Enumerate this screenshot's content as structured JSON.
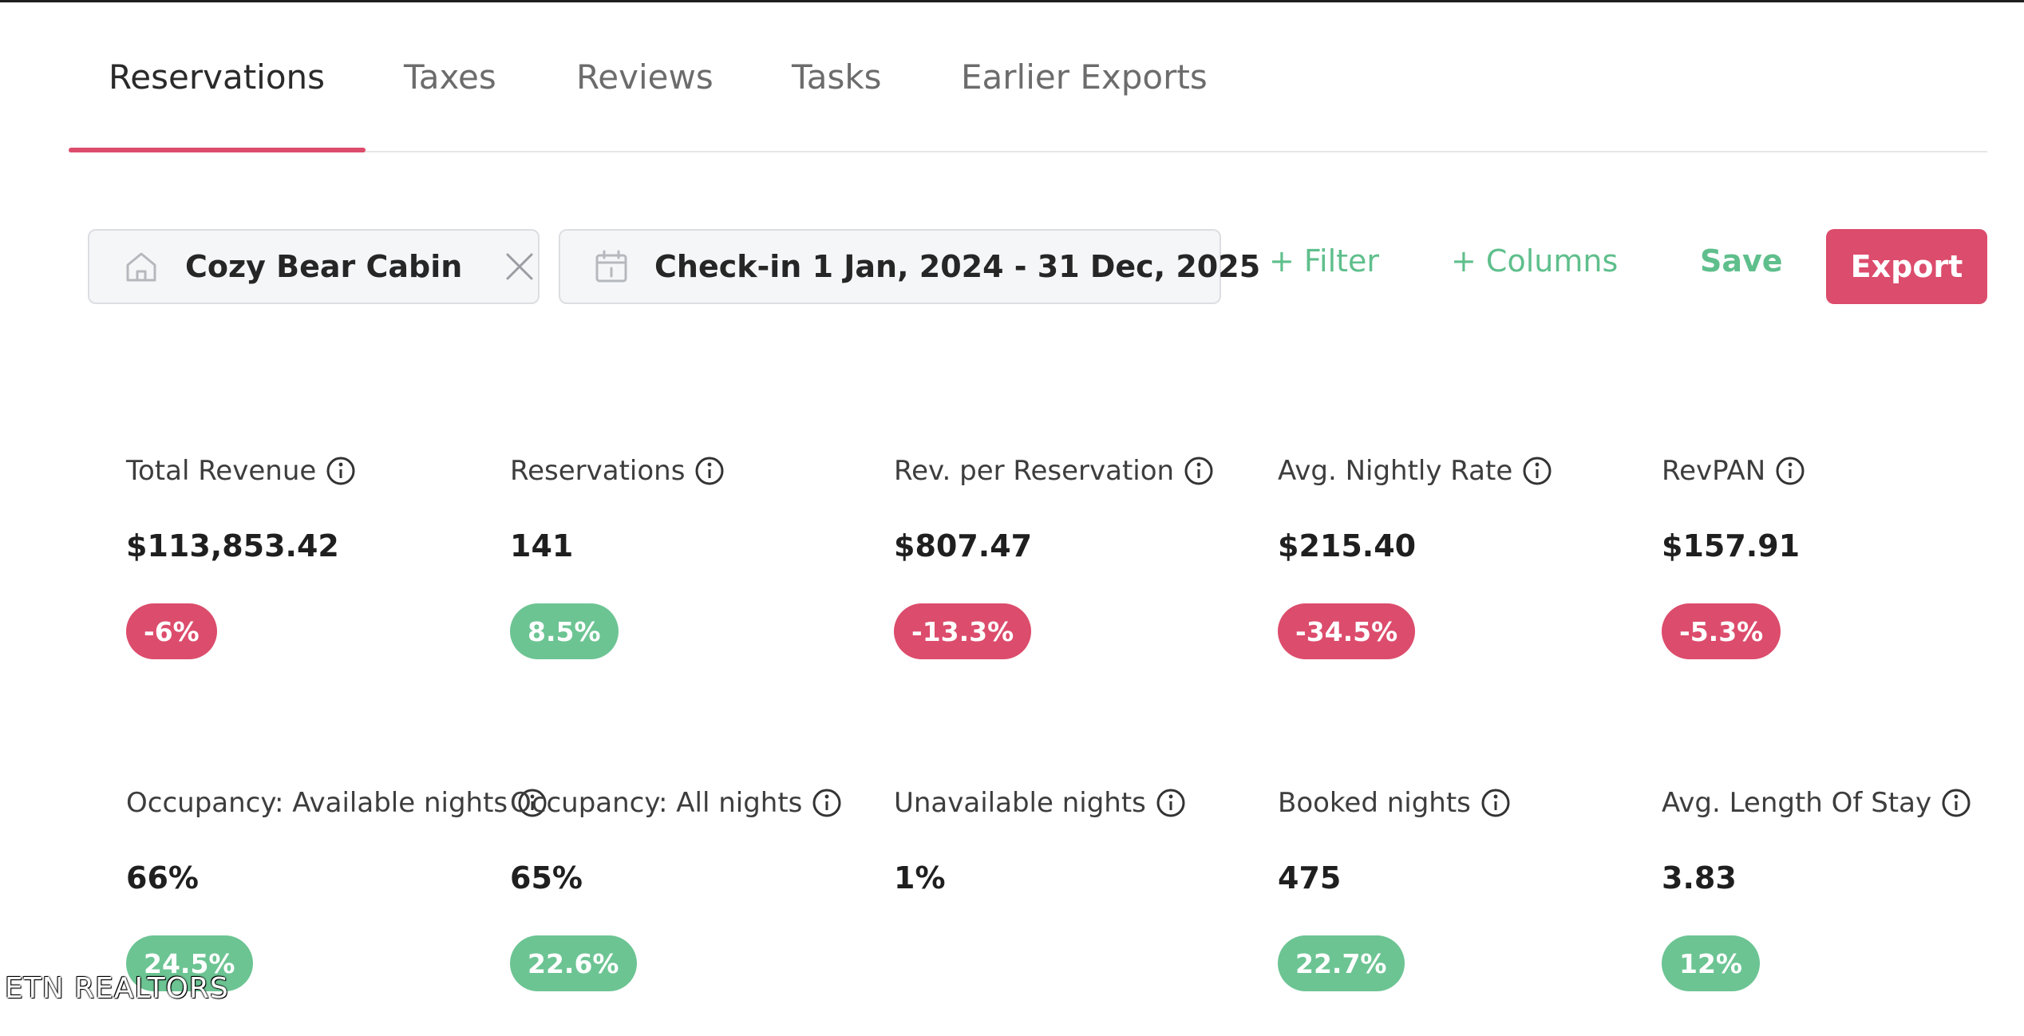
{
  "tabs": [
    {
      "label": "Reservations",
      "active": true
    },
    {
      "label": "Taxes",
      "active": false
    },
    {
      "label": "Reviews",
      "active": false
    },
    {
      "label": "Tasks",
      "active": false
    },
    {
      "label": "Earlier Exports",
      "active": false
    }
  ],
  "toolbar": {
    "property_filter": {
      "value": "Cozy Bear Cabin",
      "icon": "home-icon",
      "clear_icon": "close-icon"
    },
    "date_filter": {
      "value": "Check-in 1 Jan, 2024 - 31 Dec, 2025",
      "icon": "calendar-icon"
    },
    "filter_label": "+ Filter",
    "columns_label": "+ Columns",
    "save_label": "Save",
    "export_label": "Export"
  },
  "metrics_row1": [
    {
      "label": "Total Revenue",
      "value": "$113,853.42",
      "change": "-6%",
      "trend": "negative"
    },
    {
      "label": "Reservations",
      "value": "141",
      "change": "8.5%",
      "trend": "positive"
    },
    {
      "label": "Rev. per Reservation",
      "value": "$807.47",
      "change": "-13.3%",
      "trend": "negative"
    },
    {
      "label": "Avg. Nightly Rate",
      "value": "$215.40",
      "change": "-34.5%",
      "trend": "negative"
    },
    {
      "label": "RevPAN",
      "value": "$157.91",
      "change": "-5.3%",
      "trend": "negative"
    }
  ],
  "metrics_row2": [
    {
      "label": "Occupancy: Available nights",
      "value": "66%",
      "change": "24.5%",
      "trend": "positive"
    },
    {
      "label": "Occupancy: All nights",
      "value": "65%",
      "change": "22.6%",
      "trend": "positive"
    },
    {
      "label": "Unavailable nights",
      "value": "1%",
      "change": null,
      "trend": null
    },
    {
      "label": "Booked nights",
      "value": "475",
      "change": "22.7%",
      "trend": "positive"
    },
    {
      "label": "Avg. Length Of Stay",
      "value": "3.83",
      "change": "12%",
      "trend": "positive"
    }
  ],
  "watermark": "ETN REALTORS",
  "colors": {
    "accent": "#dc4c6c",
    "positive": "#6cc493",
    "link": "#5fbf8c"
  }
}
